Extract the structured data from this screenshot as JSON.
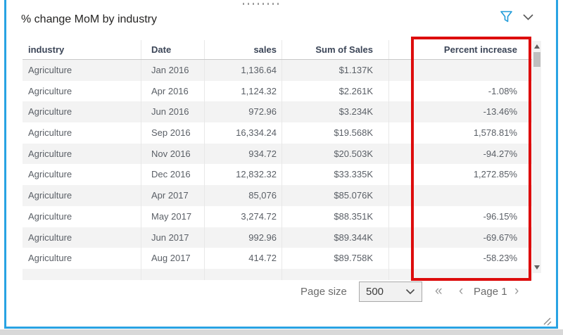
{
  "visual": {
    "title": "% change MoM by industry",
    "accent_border_color": "#29a3e3",
    "highlight_color": "#dd0d0d"
  },
  "table": {
    "columns": [
      {
        "label": "industry",
        "align": "left"
      },
      {
        "label": "Date",
        "align": "left"
      },
      {
        "label": "sales",
        "align": "right"
      },
      {
        "label": "Sum of Sales",
        "align": "right"
      },
      {
        "label": "Percent increase",
        "align": "right"
      }
    ],
    "rows": [
      [
        "Agriculture",
        "Jan 2016",
        "1,136.64",
        "$1.137K",
        ""
      ],
      [
        "Agriculture",
        "Apr 2016",
        "1,124.32",
        "$2.261K",
        "-1.08%"
      ],
      [
        "Agriculture",
        "Jun 2016",
        "972.96",
        "$3.234K",
        "-13.46%"
      ],
      [
        "Agriculture",
        "Sep 2016",
        "16,334.24",
        "$19.568K",
        "1,578.81%"
      ],
      [
        "Agriculture",
        "Nov 2016",
        "934.72",
        "$20.503K",
        "-94.27%"
      ],
      [
        "Agriculture",
        "Dec 2016",
        "12,832.32",
        "$33.335K",
        "1,272.85%"
      ],
      [
        "Agriculture",
        "Apr 2017",
        "85,076",
        "$85.076K",
        ""
      ],
      [
        "Agriculture",
        "May 2017",
        "3,274.72",
        "$88.351K",
        "-96.15%"
      ],
      [
        "Agriculture",
        "Jun 2017",
        "992.96",
        "$89.344K",
        "-69.67%"
      ],
      [
        "Agriculture",
        "Aug 2017",
        "414.72",
        "$89.758K",
        "-58.23%"
      ]
    ]
  },
  "footer": {
    "page_size_label": "Page size",
    "page_size_value": "500",
    "page_label": "Page 1",
    "first_glyph": "«",
    "prev_glyph": "‹",
    "next_glyph": "›"
  }
}
